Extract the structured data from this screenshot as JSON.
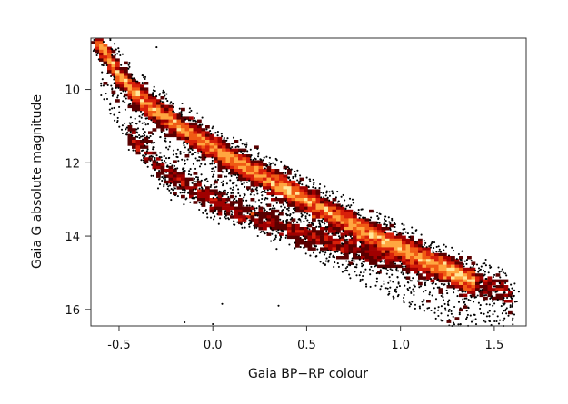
{
  "chart_data": {
    "type": "heatmap",
    "subtype": "density-scatter (colour–magnitude diagram)",
    "xlabel": "Gaia BP−RP colour",
    "ylabel": "Gaia G absolute magnitude",
    "xlim": [
      -0.65,
      1.67
    ],
    "ylim": [
      16.45,
      8.6
    ],
    "y_inverted": true,
    "x_ticks": [
      -0.5,
      0.0,
      0.5,
      1.0,
      1.5
    ],
    "x_tick_labels": [
      "-0.5",
      "0.0",
      "0.5",
      "1.0",
      "1.5"
    ],
    "y_ticks": [
      10,
      12,
      14,
      16
    ],
    "y_tick_labels": [
      "10",
      "12",
      "14",
      "16"
    ],
    "grid": false,
    "legend": "none",
    "colormap": [
      "#000000",
      "#5a0000",
      "#a00000",
      "#d8200a",
      "#f05a14",
      "#ffa640",
      "#ffe79a"
    ],
    "sequences": [
      {
        "name": "",
        "description": "dense main sequence (upper band)",
        "ridge": [
          [
            -0.62,
            8.65
          ],
          [
            -0.5,
            9.6
          ],
          [
            -0.4,
            10.2
          ],
          [
            -0.2,
            10.95
          ],
          [
            0.0,
            11.6
          ],
          [
            0.2,
            12.2
          ],
          [
            0.4,
            12.75
          ],
          [
            0.6,
            13.3
          ],
          [
            0.8,
            13.85
          ],
          [
            1.0,
            14.3
          ],
          [
            1.2,
            14.8
          ],
          [
            1.35,
            15.15
          ]
        ]
      },
      {
        "name": "",
        "description": "sparser lower sequence",
        "ridge": [
          [
            -0.45,
            11.2
          ],
          [
            -0.3,
            12.1
          ],
          [
            -0.1,
            12.8
          ],
          [
            0.1,
            13.25
          ],
          [
            0.4,
            13.8
          ],
          [
            0.7,
            14.25
          ],
          [
            1.0,
            14.65
          ],
          [
            1.3,
            15.05
          ],
          [
            1.6,
            15.65
          ]
        ]
      }
    ]
  }
}
